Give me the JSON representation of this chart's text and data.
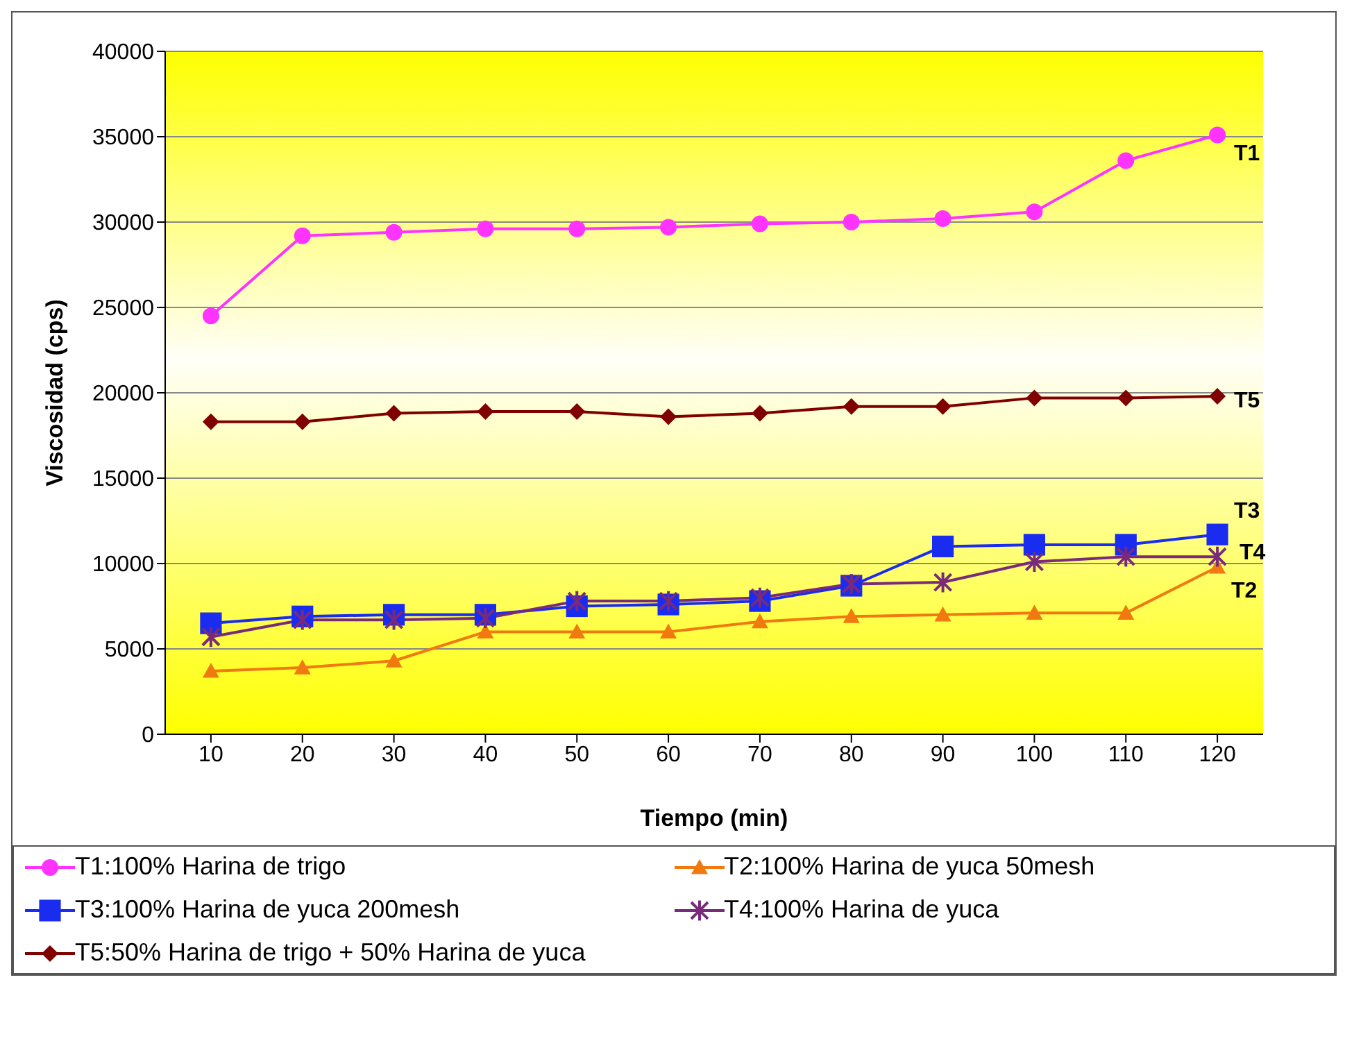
{
  "chart_data": {
    "type": "line",
    "xlabel": "Tiempo (min)",
    "ylabel": "Viscosidad (cps)",
    "categories": [
      "10",
      "20",
      "30",
      "40",
      "50",
      "60",
      "70",
      "80",
      "90",
      "100",
      "110",
      "120"
    ],
    "ylim": [
      0,
      40000
    ],
    "yticks": [
      0,
      5000,
      10000,
      15000,
      20000,
      25000,
      30000,
      35000,
      40000
    ],
    "grid": "y",
    "legend": "bottom",
    "series": [
      {
        "name": "T1:100% Harina de trigo",
        "color": "#ff33ff",
        "marker": "circle",
        "values": [
          24500,
          29200,
          29400,
          29600,
          29600,
          29700,
          29900,
          30000,
          30200,
          30600,
          33600,
          35100
        ]
      },
      {
        "name": "T2:100% Harina de yuca 50mesh",
        "color": "#f07a10",
        "marker": "triangle",
        "values": [
          3700,
          3900,
          4300,
          6000,
          6000,
          6000,
          6600,
          6900,
          7000,
          7100,
          7100,
          9800
        ]
      },
      {
        "name": "T3:100% Harina de yuca 200mesh",
        "color": "#1a2cf0",
        "marker": "square",
        "values": [
          6500,
          6900,
          7000,
          7000,
          7500,
          7600,
          7800,
          8700,
          11000,
          11100,
          11100,
          11700
        ]
      },
      {
        "name": "T4:100% Harina de yuca",
        "color": "#7a2a7a",
        "marker": "cross",
        "values": [
          5700,
          6700,
          6700,
          6800,
          7800,
          7800,
          8000,
          8800,
          8900,
          10100,
          10400,
          10400
        ]
      },
      {
        "name": "T5:50% Harina de trigo + 50% Harina de yuca",
        "color": "#800000",
        "marker": "diamond",
        "values": [
          18300,
          18300,
          18800,
          18900,
          18900,
          18600,
          18800,
          19200,
          19200,
          19700,
          19700,
          19800
        ]
      }
    ],
    "annotations": [
      {
        "text": "T1",
        "x": "120",
        "y": 35100
      },
      {
        "text": "T5",
        "x": "120",
        "y": 19800
      },
      {
        "text": "T3",
        "x": "120",
        "y": 11700
      },
      {
        "text": "T4",
        "x": "120",
        "y": 10400
      },
      {
        "text": "T2",
        "x": "120",
        "y": 9800
      }
    ]
  }
}
